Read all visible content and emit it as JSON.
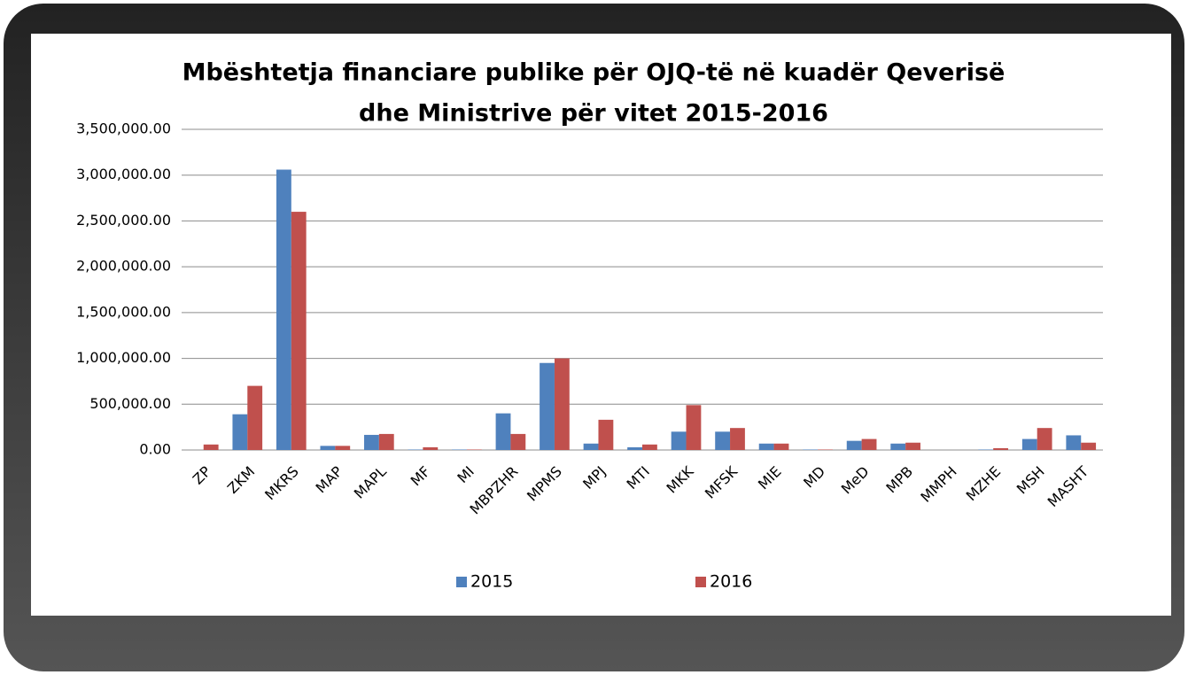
{
  "chart_data": {
    "type": "bar",
    "title": [
      "Mbështetja financiare publike për OJQ-të në kuadër Qeverisë",
      "dhe Ministrive për vitet 2015-2016"
    ],
    "categories": [
      "ZP",
      "ZKM",
      "MKRS",
      "MAP",
      "MAPL",
      "MF",
      "MI",
      "MBPZHR",
      "MPMS",
      "MPJ",
      "MTI",
      "MKK",
      "MFSK",
      "MIE",
      "MD",
      "MeD",
      "MPB",
      "MMPH",
      "MZHE",
      "MSH",
      "MASHT"
    ],
    "series": [
      {
        "name": "2015",
        "color": "#4f81bd",
        "values": [
          0,
          390000,
          3060000,
          45000,
          165000,
          5000,
          5000,
          400000,
          950000,
          70000,
          30000,
          200000,
          200000,
          70000,
          5000,
          100000,
          70000,
          0,
          5000,
          120000,
          160000
        ]
      },
      {
        "name": "2016",
        "color": "#c0504d",
        "values": [
          60000,
          700000,
          2600000,
          45000,
          175000,
          30000,
          5000,
          175000,
          1000000,
          330000,
          60000,
          490000,
          240000,
          70000,
          5000,
          120000,
          80000,
          0,
          20000,
          240000,
          80000
        ]
      }
    ],
    "ylim": [
      0,
      3500000
    ],
    "yticks": [
      {
        "value": 0,
        "label": "0.00"
      },
      {
        "value": 500000,
        "label": "500,000.00"
      },
      {
        "value": 1000000,
        "label": "1,000,000.00"
      },
      {
        "value": 1500000,
        "label": "1,500,000.00"
      },
      {
        "value": 2000000,
        "label": "2,000,000.00"
      },
      {
        "value": 2500000,
        "label": "2,500,000.00"
      },
      {
        "value": 3000000,
        "label": "3,000,000.00"
      },
      {
        "value": 3500000,
        "label": "3,500,000.00"
      }
    ],
    "grid": true,
    "legend": "bottom"
  }
}
